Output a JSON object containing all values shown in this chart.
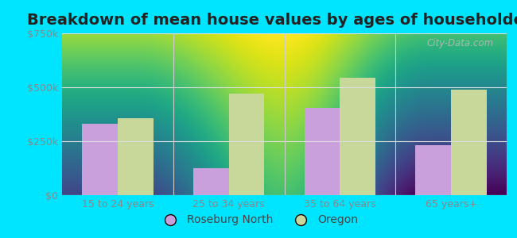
{
  "title": "Breakdown of mean house values by ages of householders",
  "categories": [
    "15 to 24 years",
    "25 to 34 years",
    "35 to 64 years",
    "65 years+"
  ],
  "roseburg_values": [
    330000,
    125000,
    405000,
    230000
  ],
  "oregon_values": [
    355000,
    470000,
    545000,
    490000
  ],
  "roseburg_color": "#c9a0dc",
  "oregon_color": "#c8d89a",
  "ylim": [
    0,
    750000
  ],
  "yticks": [
    0,
    250000,
    500000,
    750000
  ],
  "ytick_labels": [
    "$0",
    "$250k",
    "$500k",
    "$750k"
  ],
  "bg_top_color": "#f5faf0",
  "bg_bottom_color": "#dff0d8",
  "outer_background": "#00e5ff",
  "grid_color": "#dddddd",
  "legend_labels": [
    "Roseburg North",
    "Oregon"
  ],
  "watermark": "City-Data.com",
  "title_fontsize": 14,
  "label_fontsize": 9,
  "tick_color": "#888888",
  "divider_color": "#cccccc"
}
